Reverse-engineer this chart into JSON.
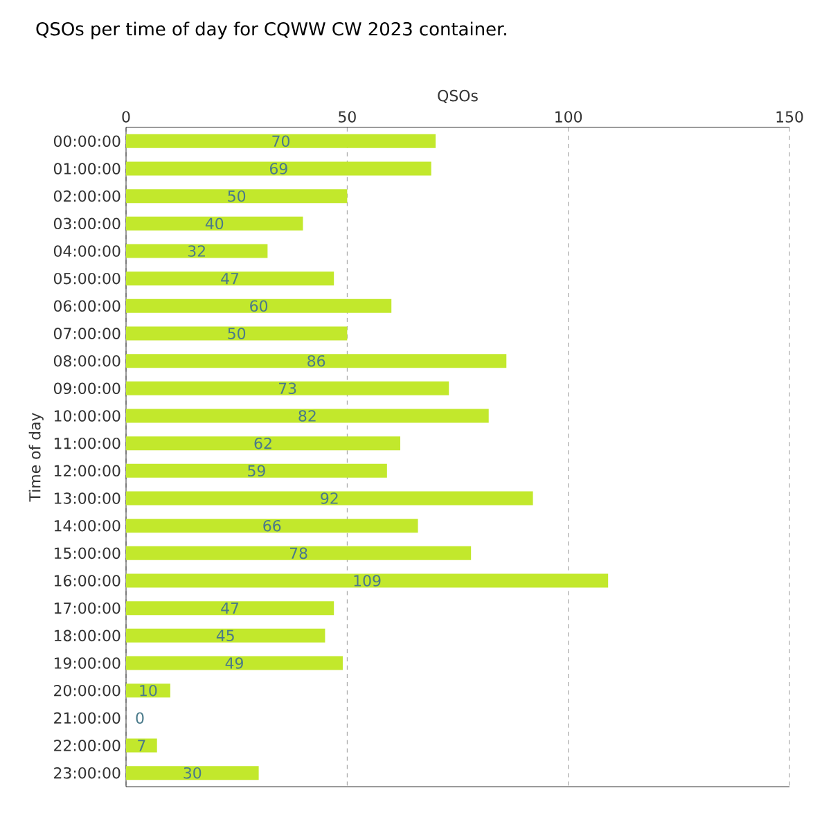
{
  "chart_data": {
    "type": "bar",
    "orientation": "horizontal",
    "title": "QSOs per time of day for CQWW CW 2023 container.",
    "xlabel": "QSOs",
    "ylabel": "Time of day",
    "categories": [
      "00:00:00",
      "01:00:00",
      "02:00:00",
      "03:00:00",
      "04:00:00",
      "05:00:00",
      "06:00:00",
      "07:00:00",
      "08:00:00",
      "09:00:00",
      "10:00:00",
      "11:00:00",
      "12:00:00",
      "13:00:00",
      "14:00:00",
      "15:00:00",
      "16:00:00",
      "17:00:00",
      "18:00:00",
      "19:00:00",
      "20:00:00",
      "21:00:00",
      "22:00:00",
      "23:00:00"
    ],
    "values": [
      70,
      69,
      50,
      40,
      32,
      47,
      60,
      50,
      86,
      73,
      82,
      62,
      59,
      92,
      66,
      78,
      109,
      47,
      45,
      49,
      10,
      0,
      7,
      30
    ],
    "color": "#c2e82c",
    "xlim": [
      0,
      150
    ],
    "xticks": [
      0,
      50,
      100,
      150
    ],
    "grid": "x",
    "data_labels": true
  }
}
